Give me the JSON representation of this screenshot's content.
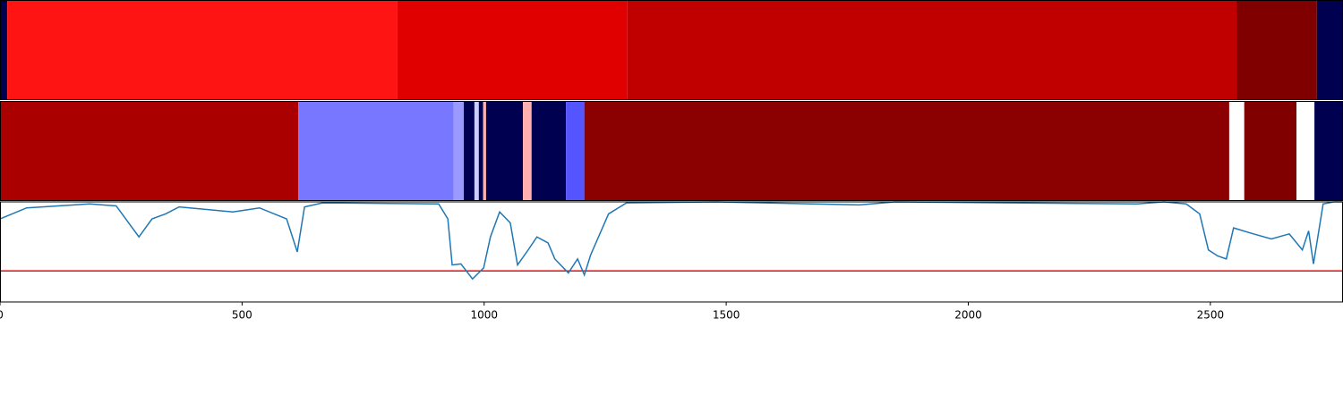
{
  "chart_data": [
    {
      "type": "heatmap",
      "edges": [
        0,
        15,
        821,
        1296,
        2554,
        2720,
        2774
      ],
      "colors": [
        "#000050",
        "#ff1414",
        "#e00000",
        "#c00000",
        "#800000",
        "#000050"
      ]
    },
    {
      "type": "heatmap",
      "edges": [
        0,
        616,
        937,
        958,
        980,
        989,
        998,
        1004,
        1080,
        1098,
        1169,
        1207,
        2539,
        2570,
        2678,
        2715,
        2774
      ],
      "colors": [
        "#aa0000",
        "#7777ff",
        "#9999ff",
        "#000050",
        "#ccccff",
        "#000050",
        "#ffb0b0",
        "#000050",
        "#ffb0b0",
        "#000050",
        "#5555ff",
        "#8b0000",
        "#ffffff",
        "#800000",
        "#ffffff",
        "#000050"
      ]
    },
    {
      "type": "line",
      "x": [
        0,
        55,
        185,
        240,
        287,
        314,
        342,
        370,
        481,
        536,
        592,
        614,
        629,
        666,
        906,
        925,
        934,
        952,
        976,
        999,
        1013,
        1032,
        1054,
        1069,
        1091,
        1109,
        1132,
        1146,
        1174,
        1193,
        1207,
        1220,
        1257,
        1294,
        1479,
        1775,
        1849,
        2348,
        2404,
        2450,
        2478,
        2496,
        2515,
        2533,
        2548,
        2589,
        2626,
        2663,
        2690,
        2703,
        2713,
        2733,
        2755,
        2774
      ],
      "values": [
        0.83,
        0.94,
        0.98,
        0.96,
        0.65,
        0.83,
        0.88,
        0.95,
        0.9,
        0.94,
        0.83,
        0.5,
        0.95,
        0.99,
        0.98,
        0.83,
        0.37,
        0.38,
        0.23,
        0.34,
        0.65,
        0.9,
        0.79,
        0.37,
        0.52,
        0.65,
        0.59,
        0.43,
        0.29,
        0.43,
        0.27,
        0.47,
        0.88,
        0.99,
        1.0,
        0.97,
        1.0,
        0.98,
        1.0,
        0.98,
        0.88,
        0.52,
        0.46,
        0.43,
        0.74,
        0.68,
        0.63,
        0.68,
        0.52,
        0.71,
        0.38,
        0.98,
        1.0,
        1.0
      ],
      "color": "#1f77b4",
      "hline": 0.31,
      "hline_color": "#ff0000",
      "xlim": [
        0,
        2774
      ],
      "ylim": [
        0,
        1
      ],
      "xticks": [
        0,
        500,
        1000,
        1500,
        2000,
        2500
      ]
    }
  ]
}
